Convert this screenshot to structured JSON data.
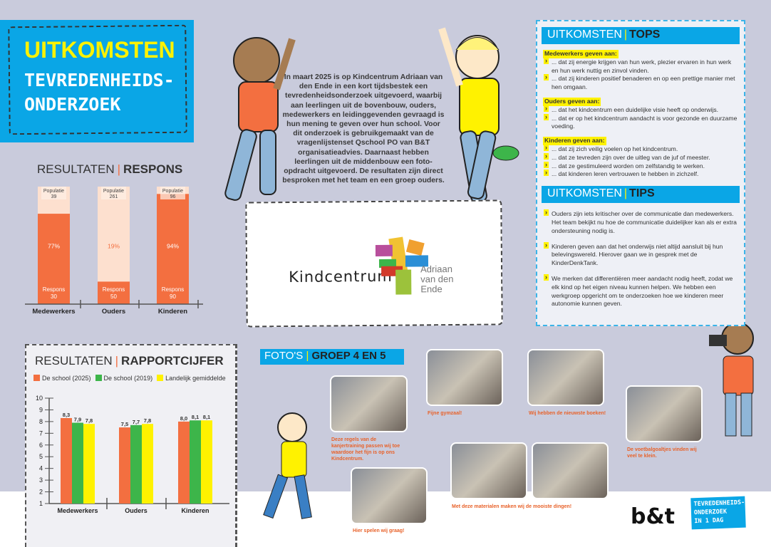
{
  "title": {
    "line1": "UITKOMSTEN",
    "line2": "TEVREDENHEIDS-",
    "line3": "ONDERZOEK"
  },
  "intro": "In maart 2025 is op Kindcentrum Adriaan van den Ende in een kort tijdsbestek een tevredenheidsonderzoek uitgevoerd, waarbij aan leerlingen uit de bovenbouw, ouders, medewerkers en leidinggevenden gevraagd is hun mening te geven over hun school. Voor dit onderzoek is gebruikgemaakt van de vragenlijstenset Qschool PO van B&T organisatieadvies. Daarnaast hebben leerlingen uit de middenbouw een foto-opdracht uitgevoerd. De resultaten zijn direct besproken met het team en een groep ouders.",
  "school_logo": {
    "word": "Kindcentrum",
    "name_lines": [
      "Adriaan",
      "van den",
      "Ende"
    ]
  },
  "respons": {
    "title_light": "RESULTATEN",
    "title_bold": "RESPONS",
    "sep": "|"
  },
  "rapport": {
    "title_light": "RESULTATEN",
    "title_bold": "RAPPORTCIJFER",
    "sep": "|"
  },
  "chart_data": [
    {
      "type": "bar",
      "title": "RESULTATEN | RESPONS",
      "categories": [
        "Medewerkers",
        "Ouders",
        "Kinderen"
      ],
      "population_label": "Populatie",
      "response_label": "Respons",
      "population": [
        39,
        261,
        96
      ],
      "response": [
        30,
        50,
        90
      ],
      "percent": [
        "77%",
        "19%",
        "94%"
      ],
      "colors": {
        "response": "#f36f40",
        "population": "#fde0cf"
      }
    },
    {
      "type": "bar",
      "title": "RESULTATEN | RAPPORTCIJFER",
      "categories": [
        "Medewerkers",
        "Ouders",
        "Kinderen"
      ],
      "ylim": [
        1,
        10
      ],
      "yticks": [
        "1",
        "2",
        "3",
        "4",
        "5",
        "6",
        "7",
        "8",
        "9",
        "10"
      ],
      "legend": "top",
      "series": [
        {
          "name": "De school (2025)",
          "color": "#f36f40",
          "values": [
            8.3,
            7.5,
            8.0
          ],
          "labels": [
            "8,3",
            "7,5",
            "8,0"
          ]
        },
        {
          "name": "De school (2019)",
          "color": "#3db54a",
          "values": [
            7.9,
            7.7,
            8.1
          ],
          "labels": [
            "7,9",
            "7,7",
            "8,1"
          ]
        },
        {
          "name": "Landelijk gemiddelde",
          "color": "#fff200",
          "values": [
            7.8,
            7.8,
            8.1
          ],
          "labels": [
            "7,8",
            "7,8",
            "8,1"
          ]
        }
      ]
    }
  ],
  "tops": {
    "light": "UITKOMSTEN",
    "bold": "TOPS",
    "sep": "|",
    "groups": [
      {
        "heading": "Medewerkers geven aan:",
        "items": [
          "... dat zij energie krijgen van hun werk, plezier ervaren in hun werk en hun werk nuttig en zinvol vinden.",
          "... dat zij kinderen positief benaderen en op een prettige manier met hen omgaan."
        ]
      },
      {
        "heading": "Ouders geven aan:",
        "items": [
          "... dat het kindcentrum een duidelijke visie heeft op onderwijs.",
          "... dat er op het kindcentrum aandacht is voor gezonde en duurzame voeding."
        ]
      },
      {
        "heading": "Kinderen geven aan:",
        "items": [
          "... dat zij zich veilig voelen op het kindcentrum.",
          "... dat ze tevreden zijn over de uitleg van de juf of meester.",
          "... dat ze gestimuleerd worden om zelfstandig te werken.",
          "... dat kinderen leren vertrouwen te hebben in zichzelf."
        ]
      }
    ]
  },
  "tips": {
    "light": "UITKOMSTEN",
    "bold": "TIPS",
    "sep": "|",
    "items": [
      "Ouders zijn iets kritischer over de communicatie dan medewerkers. Het team bekijkt nu hoe de communicatie duidelijker kan als er extra ondersteuning nodig is.",
      "Kinderen geven aan dat het onderwijs niet altijd aansluit bij hun belevingswereld. Hierover gaan we in gesprek met de KinderDenkTank.",
      "We merken dat differentiëren meer aandacht nodig heeft, zodat we elk kind op het eigen niveau kunnen helpen. We hebben een werkgroep opgericht om te onderzoeken hoe we kinderen meer autonomie kunnen geven."
    ]
  },
  "photos": {
    "light": "FOTO'S",
    "bold": "GROEP 4 EN 5",
    "sep": "|",
    "captions": [
      "Deze regels van de kanjertraining passen wij toe waardoor het fijn is op ons Kindcentrum.",
      "Fijne gymzaal!",
      "Wij hebben de nieuwste boeken!",
      "De voetbalgoaltjes vinden wij veel te klein.",
      "Hier spelen wij graag!",
      "Met deze materialen maken wij de mooiste dingen!"
    ]
  },
  "footer": {
    "bt_logo": "b&t",
    "badge_lines": [
      "TEVREDENHEIDS-",
      "ONDERZOEK",
      "IN 1 DAG"
    ]
  },
  "colors": {
    "blue": "#0aa6e6",
    "yellow": "#fff200",
    "orange": "#f36f40",
    "green": "#3db54a",
    "background": "#c9cbdc"
  }
}
